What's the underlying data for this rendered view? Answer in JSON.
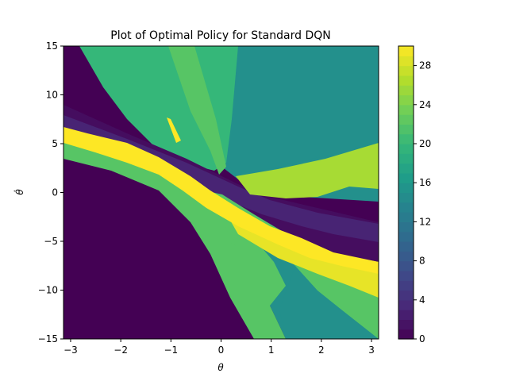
{
  "chart_data": {
    "type": "heatmap",
    "subtype": "filled-contour",
    "title": "Plot of Optimal Policy for Standard DQN",
    "xlabel": "θ",
    "ylabel": "θ̇",
    "xlim": [
      -3.14159,
      3.14159
    ],
    "ylim": [
      -15,
      15
    ],
    "x_ticks": [
      -3,
      -2,
      -1,
      0,
      1,
      2,
      3
    ],
    "x_tick_labels": [
      "−3",
      "−2",
      "−1",
      "0",
      "1",
      "2",
      "3"
    ],
    "y_ticks": [
      -15,
      -10,
      -5,
      0,
      5,
      10,
      15
    ],
    "y_tick_labels": [
      "−15",
      "−10",
      "−5",
      "0",
      "5",
      "10",
      "15"
    ],
    "colormap": "viridis",
    "colorbar": {
      "range": [
        0,
        30
      ],
      "levels": 30,
      "ticks": [
        0,
        4,
        8,
        12,
        16,
        20,
        24,
        28
      ],
      "tick_labels": [
        "0",
        "4",
        "8",
        "12",
        "16",
        "20",
        "24",
        "28"
      ]
    },
    "grid": false,
    "regions": [
      {
        "label": "background",
        "value": 15
      },
      {
        "label": "upper-right teal region",
        "value": 15
      },
      {
        "label": "lower-right teal region",
        "value": 15
      },
      {
        "label": "lower-left dark region",
        "value": 0
      },
      {
        "label": "upper-left dark region",
        "value": 0
      },
      {
        "label": "top green region",
        "value": 20
      },
      {
        "label": "top green stripe",
        "value": 22
      },
      {
        "label": "dark diagonal band",
        "value": 1
      },
      {
        "label": "purple diagonal band",
        "value": 3
      },
      {
        "label": "mid green band",
        "value": 22
      },
      {
        "label": "bottom green fan",
        "value": 22
      },
      {
        "label": "lime fan right",
        "value": 26
      },
      {
        "label": "yellow lower fan",
        "value": 29
      },
      {
        "label": "yellow central band",
        "value": 30
      },
      {
        "label": "small yellow streak",
        "value": 30
      },
      {
        "label": "small green streak",
        "value": 22
      }
    ]
  }
}
